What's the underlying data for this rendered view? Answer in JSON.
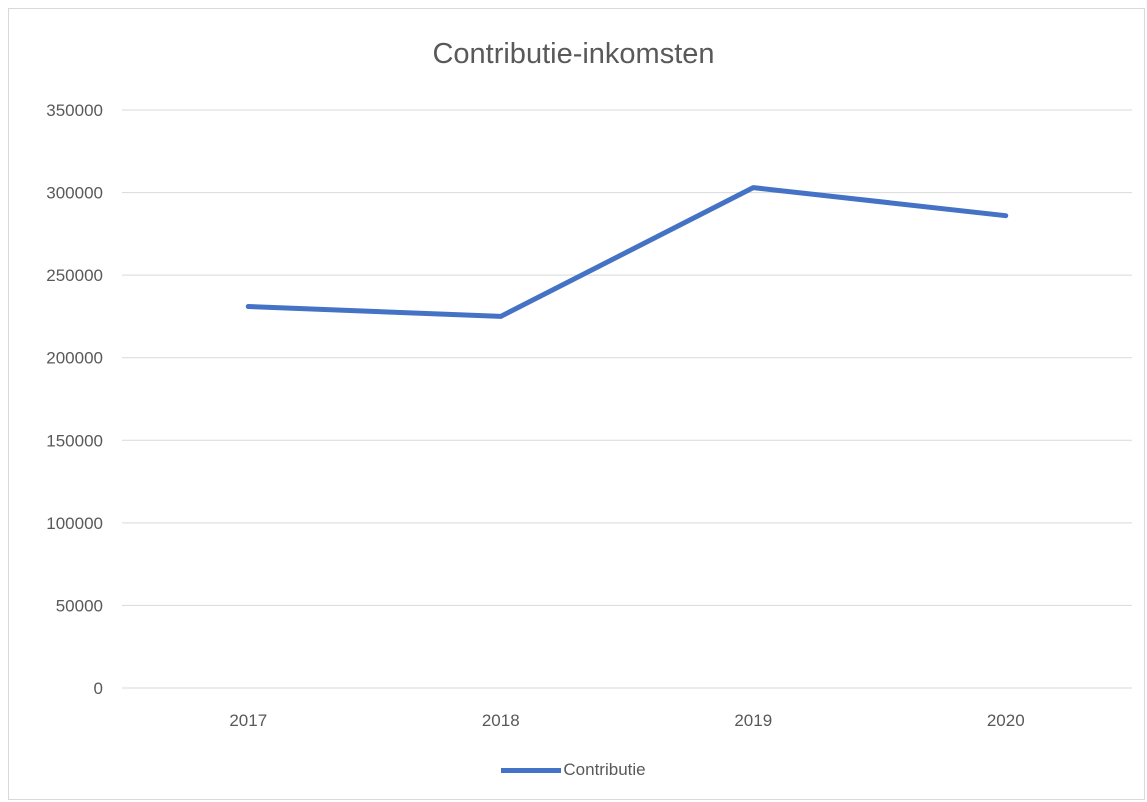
{
  "chart_data": {
    "type": "line",
    "title": "Contributie-inkomsten",
    "xlabel": "",
    "ylabel": "",
    "categories": [
      "2017",
      "2018",
      "2019",
      "2020"
    ],
    "series": [
      {
        "name": "Contributie",
        "values": [
          231000,
          225000,
          303000,
          286000
        ],
        "color": "#4472c4"
      }
    ],
    "ylim": [
      0,
      350000
    ],
    "yticks": [
      "0",
      "50000",
      "100000",
      "150000",
      "200000",
      "250000",
      "300000",
      "350000"
    ],
    "grid": true,
    "legend_position": "bottom"
  }
}
